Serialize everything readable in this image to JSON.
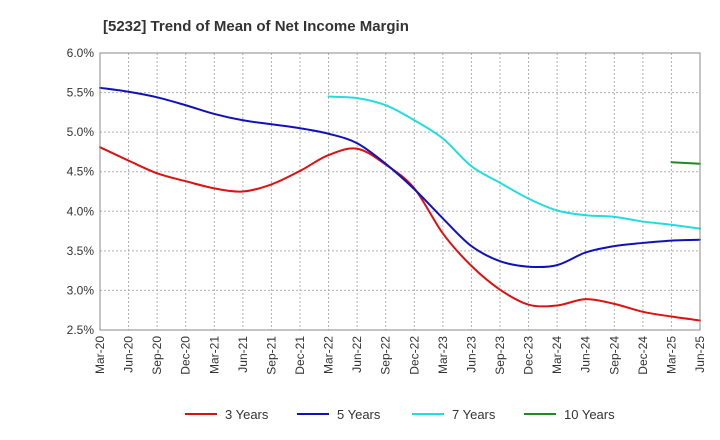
{
  "chart_data": {
    "type": "line",
    "title": "[5232]  Trend of Mean of Net Income Margin",
    "xlabel": "",
    "ylabel": "",
    "ylim": [
      2.5,
      6.0
    ],
    "y_ticks": [
      "2.5%",
      "3.0%",
      "3.5%",
      "4.0%",
      "4.5%",
      "5.0%",
      "5.5%",
      "6.0%"
    ],
    "y_tick_values": [
      2.5,
      3.0,
      3.5,
      4.0,
      4.5,
      5.0,
      5.5,
      6.0
    ],
    "x": [
      "Mar-20",
      "Jun-20",
      "Sep-20",
      "Dec-20",
      "Mar-21",
      "Jun-21",
      "Sep-21",
      "Dec-21",
      "Mar-22",
      "Jun-22",
      "Sep-22",
      "Dec-22",
      "Mar-23",
      "Jun-23",
      "Sep-23",
      "Dec-23",
      "Mar-24",
      "Jun-24",
      "Sep-24",
      "Dec-24",
      "Mar-25",
      "Jun-25"
    ],
    "grid": true,
    "legend_position": "bottom",
    "series": [
      {
        "name": "3 Years",
        "color": "#dd1111",
        "values": [
          4.81,
          4.64,
          4.48,
          4.38,
          4.29,
          4.25,
          4.34,
          4.51,
          4.71,
          4.79,
          4.59,
          4.29,
          3.72,
          3.31,
          3.01,
          2.82,
          2.81,
          2.89,
          2.83,
          2.73,
          2.67,
          2.62
        ]
      },
      {
        "name": "5 Years",
        "color": "#1111bb",
        "values": [
          5.56,
          5.51,
          5.44,
          5.34,
          5.23,
          5.15,
          5.1,
          5.05,
          4.98,
          4.86,
          4.6,
          4.28,
          3.91,
          3.56,
          3.37,
          3.3,
          3.32,
          3.48,
          3.56,
          3.6,
          3.63,
          3.64
        ]
      },
      {
        "name": "7 Years",
        "color": "#22dddd",
        "values": [
          null,
          null,
          null,
          null,
          null,
          null,
          null,
          null,
          5.45,
          5.43,
          5.34,
          5.15,
          4.92,
          4.57,
          4.36,
          4.16,
          4.01,
          3.95,
          3.93,
          3.87,
          3.83,
          3.78
        ]
      },
      {
        "name": "10 Years",
        "color": "#228822",
        "values": [
          null,
          null,
          null,
          null,
          null,
          null,
          null,
          null,
          null,
          null,
          null,
          null,
          null,
          null,
          null,
          null,
          null,
          null,
          null,
          null,
          4.62,
          4.6
        ]
      }
    ]
  }
}
